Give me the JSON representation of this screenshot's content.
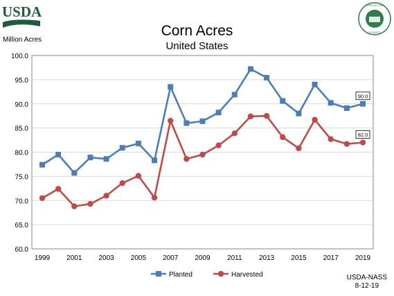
{
  "brand": {
    "logo_text": "USDA",
    "seal_text": "AGRICULTURE COUNTS"
  },
  "colors": {
    "planted": "#4a7ebb",
    "harvested": "#be4b48",
    "grid": "#d9d9d9",
    "axis": "#868686"
  },
  "footer": {
    "source": "USDA-NASS",
    "date": "8-12-19"
  },
  "chart_data": {
    "type": "line",
    "title": "Corn Acres",
    "subtitle": "United States",
    "ylabel": "Million Acres",
    "xlabel": "",
    "x": [
      1999,
      2000,
      2001,
      2002,
      2003,
      2004,
      2005,
      2006,
      2007,
      2008,
      2009,
      2010,
      2011,
      2012,
      2013,
      2014,
      2015,
      2016,
      2017,
      2018,
      2019
    ],
    "x_tick_labels": [
      "1999",
      "2001",
      "2003",
      "2005",
      "2007",
      "2009",
      "2011",
      "2013",
      "2015",
      "2017",
      "2019"
    ],
    "ylim": [
      60,
      100
    ],
    "y_tick_labels": [
      "60.0",
      "65.0",
      "70.0",
      "75.0",
      "80.0",
      "85.0",
      "90.0",
      "95.0",
      "100.0"
    ],
    "grid": "horizontal",
    "legend_position": "bottom",
    "series": [
      {
        "name": "Planted",
        "marker": "square",
        "values": [
          77.4,
          79.5,
          75.7,
          78.9,
          78.6,
          80.9,
          81.8,
          78.3,
          93.5,
          86.0,
          86.4,
          88.2,
          91.9,
          97.2,
          95.4,
          90.6,
          88.0,
          94.0,
          90.2,
          89.1,
          90.0
        ]
      },
      {
        "name": "Harvested",
        "marker": "circle",
        "values": [
          70.5,
          72.4,
          68.8,
          69.3,
          71.0,
          73.6,
          75.1,
          70.6,
          86.5,
          78.6,
          79.5,
          81.4,
          83.9,
          87.4,
          87.5,
          83.1,
          80.8,
          86.7,
          82.7,
          81.7,
          82.0
        ]
      }
    ],
    "annotations": [
      {
        "series": "Planted",
        "x": 2019,
        "text": "90.0"
      },
      {
        "series": "Harvested",
        "x": 2019,
        "text": "82.0"
      }
    ]
  }
}
